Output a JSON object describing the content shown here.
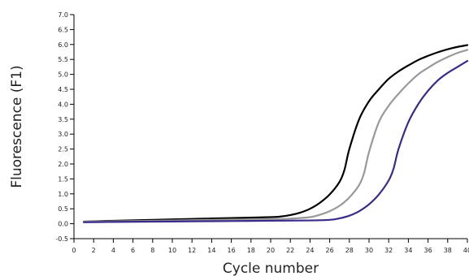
{
  "chart_data": {
    "type": "line",
    "title": "",
    "xlabel": "Cycle number",
    "ylabel": "Fluorescence (F1)",
    "xlim": [
      0,
      40
    ],
    "ylim": [
      -0.5,
      7.0
    ],
    "x_ticks": [
      "0",
      "2",
      "4",
      "6",
      "8",
      "10",
      "12",
      "14",
      "16",
      "18",
      "20",
      "22",
      "24",
      "26",
      "28",
      "30",
      "32",
      "34",
      "36",
      "38",
      "40"
    ],
    "y_ticks": [
      "-0.5",
      "0.0",
      "0.5",
      "1.0",
      "1.5",
      "2.0",
      "2.5",
      "3.0",
      "3.5",
      "4.0",
      "4.5",
      "5.0",
      "5.5",
      "6.0",
      "6.5",
      "7.0"
    ],
    "grid": false,
    "legend": "none",
    "series": [
      {
        "color": "#000000",
        "x": [
          1,
          4,
          8,
          12,
          16,
          20,
          21,
          22,
          23,
          24,
          25,
          26,
          27,
          27.5,
          28,
          29,
          30,
          31,
          32,
          33,
          34,
          35,
          36,
          37,
          38,
          39,
          40
        ],
        "y": [
          0.07,
          0.1,
          0.13,
          0.16,
          0.19,
          0.22,
          0.24,
          0.29,
          0.37,
          0.5,
          0.7,
          0.98,
          1.4,
          1.8,
          2.5,
          3.5,
          4.1,
          4.5,
          4.85,
          5.1,
          5.3,
          5.48,
          5.62,
          5.74,
          5.84,
          5.92,
          5.98
        ]
      },
      {
        "color": "#999999",
        "x": [
          1,
          4,
          8,
          12,
          16,
          20,
          22,
          24,
          25,
          26,
          27,
          28,
          29,
          29.5,
          30,
          31,
          32,
          33,
          34,
          35,
          36,
          37,
          38,
          39,
          40
        ],
        "y": [
          0.07,
          0.08,
          0.1,
          0.12,
          0.14,
          0.15,
          0.17,
          0.22,
          0.3,
          0.42,
          0.6,
          0.88,
          1.3,
          1.7,
          2.4,
          3.4,
          3.95,
          4.35,
          4.7,
          5.0,
          5.22,
          5.42,
          5.58,
          5.72,
          5.82
        ]
      },
      {
        "color": "#3a2a8a",
        "x": [
          1,
          4,
          8,
          12,
          16,
          20,
          24,
          26,
          27,
          28,
          29,
          30,
          31,
          32,
          32.5,
          33,
          34,
          35,
          36,
          37,
          38,
          39,
          40
        ],
        "y": [
          0.05,
          0.06,
          0.07,
          0.08,
          0.09,
          0.1,
          0.11,
          0.13,
          0.18,
          0.27,
          0.42,
          0.65,
          0.98,
          1.45,
          1.85,
          2.5,
          3.4,
          4.0,
          4.45,
          4.8,
          5.05,
          5.25,
          5.45
        ]
      }
    ]
  }
}
